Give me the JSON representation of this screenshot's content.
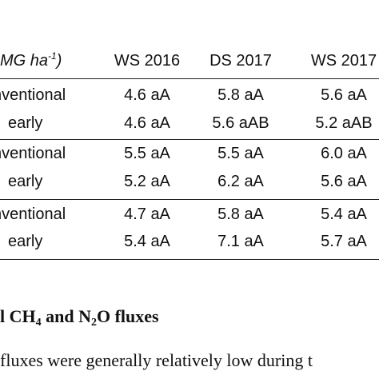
{
  "table": {
    "unit_prefix": "MG ha",
    "unit_superscript": "-1",
    "unit_suffix": ")",
    "columns": [
      "WS 2016",
      "DS 2017",
      "WS 2017"
    ],
    "groups": [
      {
        "rows": [
          {
            "label": "nventional",
            "values": [
              "4.6 aA",
              "5.8 aA",
              "5.6 aA"
            ]
          },
          {
            "label": "early",
            "values": [
              "4.6 aA",
              "5.6 aAB",
              "5.2 aAB"
            ]
          }
        ]
      },
      {
        "rows": [
          {
            "label": "nventional",
            "values": [
              "5.5 aA",
              "5.5 aA",
              "6.0 aA"
            ]
          },
          {
            "label": "early",
            "values": [
              "5.2 aA",
              "6.2 aA",
              "5.6 aA"
            ]
          }
        ]
      },
      {
        "rows": [
          {
            "label": "nventional",
            "values": [
              "4.7 aA",
              "5.8 aA",
              "5.4 aA"
            ]
          },
          {
            "label": "early",
            "values": [
              "5.4 aA",
              "7.1 aA",
              "5.7 aA"
            ]
          }
        ]
      }
    ]
  },
  "section_heading": {
    "part1": "l CH",
    "sub1": "4",
    "part2": " and N",
    "sub2": "2",
    "part3": "O fluxes"
  },
  "paragraph": {
    "text": "fluxes were generally relatively low during t"
  }
}
